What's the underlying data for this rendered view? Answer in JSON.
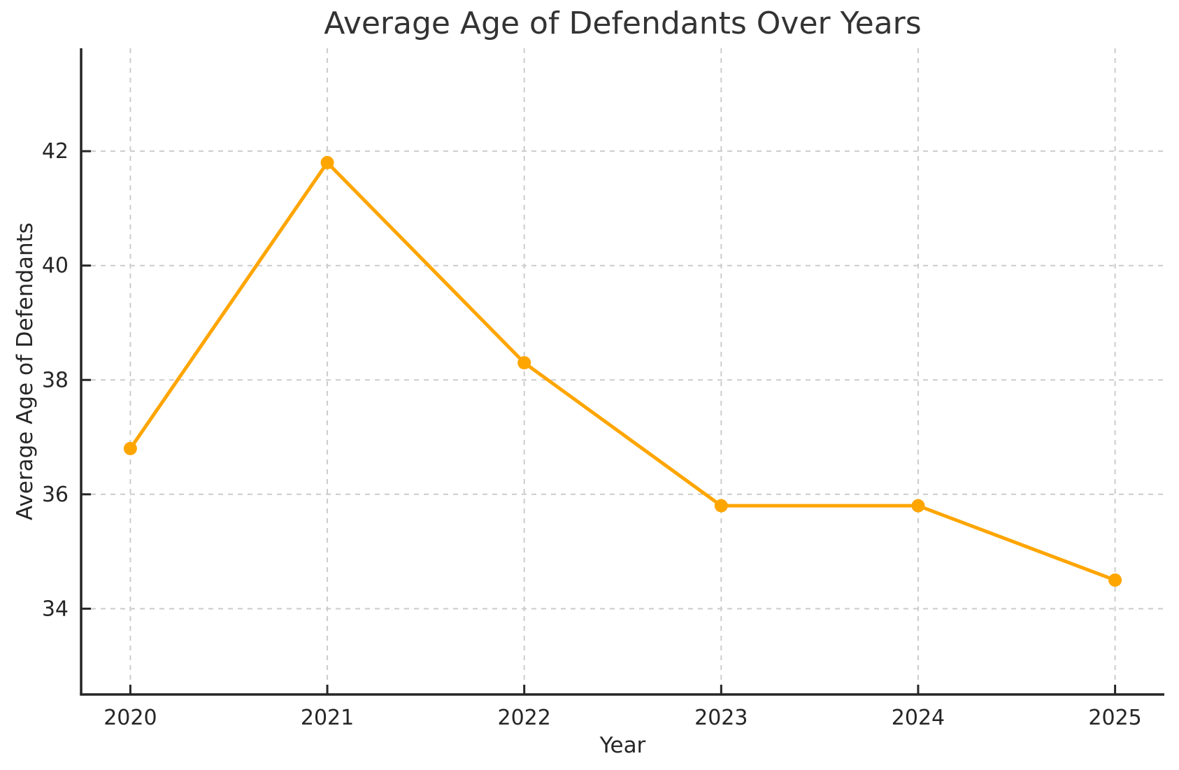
{
  "chart_data": {
    "type": "line",
    "title": "Average Age of Defendants Over Years",
    "xlabel": "Year",
    "ylabel": "Average Age of Defendants",
    "x": [
      2020,
      2021,
      2022,
      2023,
      2024,
      2025
    ],
    "values": [
      36.8,
      41.8,
      38.3,
      35.8,
      35.8,
      34.5
    ],
    "xticks": [
      2020,
      2021,
      2022,
      2023,
      2024,
      2025
    ],
    "yticks": [
      34,
      36,
      38,
      40,
      42
    ],
    "xlim": [
      2019.75,
      2025.25
    ],
    "ylim": [
      32.5,
      43.8
    ],
    "grid": true,
    "grid_style": "dashed",
    "legend": "none",
    "colors": {
      "line": "#FFA500",
      "marker": "#FFA500",
      "grid": "#cccccc",
      "spine": "#262626",
      "tick_label": "#262626",
      "title": "#333333",
      "background": "#ffffff"
    }
  }
}
